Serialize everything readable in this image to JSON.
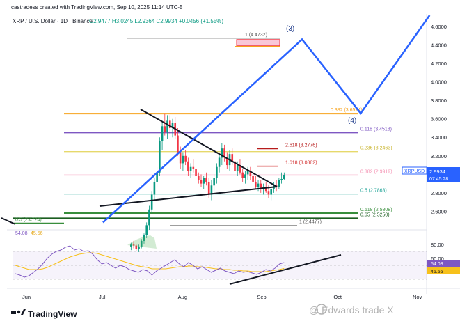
{
  "header": {
    "credit": "castradess created with TradingView.com, Sep 10, 2025 11:14 UTC-5",
    "symbol": "XRP / U.S. Dollar · 1D · Binance",
    "ohlc": "O2.9477  H3.0245  L2.9364  C2.9934  +0.0456 (+1.55%)"
  },
  "watermark": "@ Edwards trade X",
  "logo_text": "TradingView",
  "ticker_badge": {
    "symbol": "XRPUSD",
    "price": "2.9934",
    "countdown": "07:45:28"
  },
  "colors": {
    "up": "#089981",
    "down": "#f23645",
    "blue_path": "#2962ff",
    "green_level": "#388e3c",
    "orange_level": "#f7a21b",
    "purple_level": "#7e57c2",
    "red_level": "#d32f2f",
    "pink_level": "#f48fb1",
    "yellow_level": "#e6d96b",
    "teal_level": "#80cbc4",
    "rsi_line": "#7e57c2",
    "rsi_ma": "#f7c11b"
  },
  "chart_data": {
    "type": "candlestick",
    "x_axis": [
      "Jun",
      "Jul",
      "Aug",
      "Sep",
      "Oct",
      "Nov"
    ],
    "price_ticks": [
      "4.6000",
      "4.4000",
      "4.2000",
      "4.0000",
      "3.8000",
      "3.6000",
      "3.4000",
      "3.2000",
      "2.8000",
      "2.6000"
    ],
    "price_range": [
      2.4,
      4.72
    ],
    "rsi_ticks": [
      "80.00",
      "60.00",
      "40.00"
    ],
    "rsi_range": [
      20,
      100
    ],
    "rsi_labels": {
      "rsi": "54.08",
      "rsi_ma": "45.56",
      "badge_rsi": "54.08",
      "badge_ma": "45.56"
    },
    "fib_levels": [
      {
        "label": "1 (4.4732)",
        "price": 4.4732,
        "color": "#9e9e9e"
      },
      {
        "label": "0.382 (3.6574)",
        "price": 3.6574,
        "color": "#f7a21b"
      },
      {
        "label": "0.118 (3.4518)",
        "price": 3.4518,
        "color": "#7e57c2"
      },
      {
        "label": "2.618 (3.2776)",
        "price": 3.2776,
        "color": "#b71c1c"
      },
      {
        "label": "0.236 (3.2463)",
        "price": 3.2463,
        "color": "#e6d96b"
      },
      {
        "label": "1.618 (3.0882)",
        "price": 3.0882,
        "color": "#d32f2f"
      },
      {
        "label": "0.382 (2.9919)",
        "price": 2.9919,
        "color": "#f48fb1"
      },
      {
        "label": "0.5 (2.7863)",
        "price": 2.7863,
        "color": "#80cbc4"
      },
      {
        "label": "0.618 (2.5808)",
        "price": 2.5808,
        "color": "#388e3c"
      },
      {
        "label": "0.65 (2.5250)",
        "price": 2.525,
        "color": "#1b5e20"
      },
      {
        "label": "0.5 (2.4724)",
        "price": 2.4724,
        "color": "#388e3c"
      },
      {
        "label": "1 (2.4477)",
        "price": 2.4477,
        "color": "#9e9e9e"
      }
    ],
    "wave_labels": [
      "(3)",
      "(4)"
    ],
    "elliott_path": [
      {
        "date": "2025-07-01",
        "price": 2.48
      },
      {
        "date": "2025-09-17",
        "price": 4.46
      },
      {
        "date": "2025-10-10",
        "price": 3.66
      },
      {
        "date": "2025-11-06",
        "price": 4.72
      }
    ],
    "candles_ohlc": [
      [
        2.22,
        2.26,
        2.18,
        2.24
      ],
      [
        2.24,
        2.28,
        2.2,
        2.23
      ],
      [
        2.23,
        2.25,
        2.17,
        2.19
      ],
      [
        2.19,
        2.24,
        2.16,
        2.22
      ],
      [
        2.22,
        2.3,
        2.2,
        2.28
      ],
      [
        2.28,
        2.36,
        2.25,
        2.34
      ],
      [
        2.34,
        2.48,
        2.31,
        2.45
      ],
      [
        2.45,
        2.66,
        2.4,
        2.62
      ],
      [
        2.62,
        2.82,
        2.58,
        2.78
      ],
      [
        2.78,
        2.96,
        2.72,
        2.92
      ],
      [
        2.92,
        3.08,
        2.86,
        3.02
      ],
      [
        3.02,
        3.4,
        2.98,
        3.36
      ],
      [
        3.36,
        3.58,
        3.26,
        3.52
      ],
      [
        3.52,
        3.66,
        3.42,
        3.46
      ],
      [
        3.46,
        3.64,
        3.38,
        3.58
      ],
      [
        3.58,
        3.64,
        3.44,
        3.5
      ],
      [
        3.5,
        3.6,
        3.4,
        3.56
      ],
      [
        3.56,
        3.62,
        3.38,
        3.42
      ],
      [
        3.42,
        3.5,
        3.2,
        3.24
      ],
      [
        3.24,
        3.3,
        3.06,
        3.12
      ],
      [
        3.12,
        3.24,
        3.04,
        3.2
      ],
      [
        3.2,
        3.26,
        3.1,
        3.14
      ],
      [
        3.14,
        3.18,
        2.98,
        3.04
      ],
      [
        3.04,
        3.12,
        2.96,
        3.08
      ],
      [
        3.08,
        3.16,
        3.02,
        3.06
      ],
      [
        3.06,
        3.1,
        2.94,
        2.98
      ],
      [
        2.98,
        3.02,
        2.9,
        2.94
      ],
      [
        2.94,
        3.0,
        2.86,
        2.9
      ],
      [
        2.9,
        2.98,
        2.84,
        2.96
      ],
      [
        2.96,
        3.02,
        2.88,
        2.92
      ],
      [
        2.92,
        2.96,
        2.74,
        2.78
      ],
      [
        2.78,
        2.94,
        2.72,
        2.88
      ],
      [
        2.88,
        3.0,
        2.82,
        2.96
      ],
      [
        2.96,
        3.12,
        2.9,
        3.08
      ],
      [
        3.08,
        3.22,
        3.02,
        3.18
      ],
      [
        3.18,
        3.34,
        3.1,
        3.28
      ],
      [
        3.28,
        3.32,
        3.14,
        3.18
      ],
      [
        3.18,
        3.24,
        3.06,
        3.1
      ],
      [
        3.1,
        3.26,
        3.04,
        3.22
      ],
      [
        3.22,
        3.28,
        3.1,
        3.14
      ],
      [
        3.14,
        3.2,
        3.0,
        3.04
      ],
      [
        3.04,
        3.14,
        2.98,
        3.1
      ],
      [
        3.1,
        3.16,
        3.0,
        3.02
      ],
      [
        3.02,
        3.06,
        2.92,
        2.96
      ],
      [
        2.96,
        3.04,
        2.9,
        3.0
      ],
      [
        3.0,
        3.08,
        2.94,
        3.04
      ],
      [
        3.04,
        3.08,
        2.94,
        2.98
      ],
      [
        2.98,
        3.02,
        2.88,
        2.92
      ],
      [
        2.92,
        2.98,
        2.84,
        2.86
      ],
      [
        2.86,
        2.94,
        2.82,
        2.9
      ],
      [
        2.9,
        2.94,
        2.8,
        2.84
      ],
      [
        2.84,
        2.9,
        2.78,
        2.86
      ],
      [
        2.86,
        2.92,
        2.8,
        2.82
      ],
      [
        2.82,
        2.88,
        2.74,
        2.78
      ],
      [
        2.78,
        2.86,
        2.72,
        2.84
      ],
      [
        2.84,
        2.92,
        2.8,
        2.88
      ],
      [
        2.88,
        2.94,
        2.82,
        2.86
      ],
      [
        2.86,
        2.96,
        2.84,
        2.94
      ],
      [
        2.94,
        3.02,
        2.9,
        2.95
      ],
      [
        2.95,
        3.02,
        2.94,
        2.99
      ]
    ],
    "rsi_values": [
      38,
      36,
      33,
      35,
      40,
      45,
      52,
      60,
      66,
      70,
      72,
      76,
      78,
      72,
      74,
      70,
      71,
      66,
      58,
      52,
      54,
      50,
      46,
      50,
      48,
      44,
      42,
      40,
      44,
      42,
      36,
      42,
      46,
      50,
      54,
      58,
      52,
      48,
      54,
      50,
      45,
      48,
      44,
      40,
      43,
      46,
      42,
      40,
      38,
      42,
      40,
      41,
      39,
      37,
      40,
      44,
      42,
      46,
      52,
      54
    ],
    "rsi_ma_values": [
      50,
      48,
      46,
      44,
      44,
      44,
      45,
      47,
      50,
      53,
      56,
      59,
      62,
      64,
      66,
      67,
      68,
      68,
      67,
      65,
      63,
      61,
      59,
      57,
      55,
      53,
      51,
      49,
      48,
      47,
      45,
      45,
      45,
      45,
      46,
      47,
      48,
      48,
      49,
      49,
      48,
      48,
      47,
      46,
      45,
      45,
      44,
      44,
      43,
      43,
      42,
      42,
      41,
      41,
      41,
      41,
      42,
      43,
      44,
      45.56
    ]
  }
}
